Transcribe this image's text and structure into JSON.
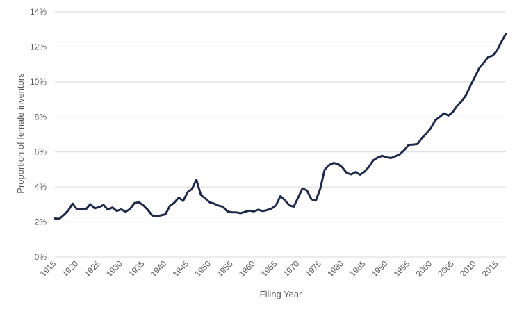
{
  "chart_data": {
    "type": "line",
    "title": "",
    "xlabel": "Filing Year",
    "ylabel": "Proportion of female inventors",
    "xlim": [
      1915,
      2017
    ],
    "ylim": [
      0,
      14
    ],
    "y_ticks": [
      "0%",
      "2%",
      "4%",
      "6%",
      "8%",
      "10%",
      "12%",
      "14%"
    ],
    "y_tick_values": [
      0,
      2,
      4,
      6,
      8,
      10,
      12,
      14
    ],
    "x_ticks": [
      "1915",
      "1920",
      "1925",
      "1930",
      "1935",
      "1940",
      "1945",
      "1950",
      "1955",
      "1960",
      "1965",
      "1970",
      "1975",
      "1980",
      "1985",
      "1990",
      "1995",
      "2000",
      "2005",
      "2010",
      "2015"
    ],
    "x_tick_values": [
      1915,
      1920,
      1925,
      1930,
      1935,
      1940,
      1945,
      1950,
      1955,
      1960,
      1965,
      1970,
      1975,
      1980,
      1985,
      1990,
      1995,
      2000,
      2005,
      2010,
      2015
    ],
    "grid": true,
    "legend": "none",
    "series_color": "#1f2a4a",
    "series": [
      {
        "x": [
          1915,
          1916,
          1917,
          1918,
          1919,
          1920,
          1921,
          1922,
          1923,
          1924,
          1925,
          1926,
          1927,
          1928,
          1929,
          1930,
          1931,
          1932,
          1933,
          1934,
          1935,
          1936,
          1937,
          1938,
          1939,
          1940,
          1941,
          1942,
          1943,
          1944,
          1945,
          1946,
          1947,
          1948,
          1949,
          1950,
          1951,
          1952,
          1953,
          1954,
          1955,
          1956,
          1957,
          1958,
          1959,
          1960,
          1961,
          1962,
          1963,
          1964,
          1965,
          1966,
          1967,
          1968,
          1969,
          1970,
          1971,
          1972,
          1973,
          1974,
          1975,
          1976,
          1977,
          1978,
          1979,
          1980,
          1981,
          1982,
          1983,
          1984,
          1985,
          1986,
          1987,
          1988,
          1989,
          1990,
          1991,
          1992,
          1993,
          1994,
          1995,
          1996,
          1997,
          1998,
          1999,
          2000,
          2001,
          2002,
          2003,
          2004,
          2005,
          2006,
          2007,
          2008,
          2009,
          2010,
          2011,
          2012,
          2013,
          2014,
          2015,
          2016,
          2017
        ],
        "values": [
          2.2,
          2.18,
          2.4,
          2.65,
          3.05,
          2.72,
          2.72,
          2.72,
          3.02,
          2.78,
          2.85,
          2.97,
          2.7,
          2.83,
          2.63,
          2.72,
          2.58,
          2.75,
          3.08,
          3.13,
          2.95,
          2.7,
          2.37,
          2.32,
          2.38,
          2.44,
          2.92,
          3.1,
          3.4,
          3.2,
          3.7,
          3.88,
          4.42,
          3.55,
          3.35,
          3.12,
          3.05,
          2.93,
          2.87,
          2.6,
          2.55,
          2.55,
          2.5,
          2.58,
          2.65,
          2.6,
          2.7,
          2.62,
          2.68,
          2.77,
          2.95,
          3.48,
          3.25,
          2.95,
          2.87,
          3.4,
          3.92,
          3.8,
          3.3,
          3.22,
          3.9,
          4.98,
          5.25,
          5.37,
          5.32,
          5.12,
          4.8,
          4.72,
          4.85,
          4.7,
          4.87,
          5.15,
          5.52,
          5.68,
          5.78,
          5.7,
          5.65,
          5.75,
          5.87,
          6.1,
          6.4,
          6.42,
          6.45,
          6.8,
          7.05,
          7.35,
          7.8,
          8.0,
          8.2,
          8.08,
          8.28,
          8.65,
          8.9,
          9.25,
          9.8,
          10.3,
          10.8,
          11.1,
          11.42,
          11.5,
          11.8,
          12.3,
          12.75
        ]
      }
    ]
  }
}
